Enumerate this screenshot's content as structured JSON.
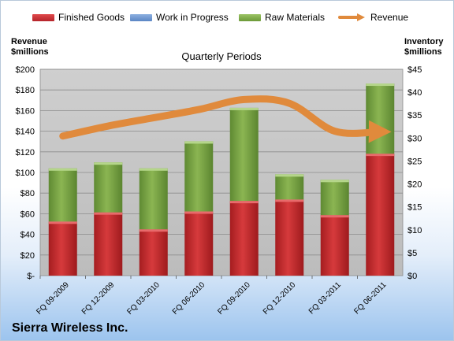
{
  "legend": {
    "finished_goods": "Finished Goods",
    "work_in_progress": "Work in Progress",
    "raw_materials": "Raw Materials",
    "revenue": "Revenue"
  },
  "axis": {
    "left_title": "Revenue\n$millions",
    "right_title": "Inventory\n$millions"
  },
  "company": "Sierra Wireless Inc.",
  "colors": {
    "finished_goods": "#c0282b",
    "work_in_progress": "#5b86c4",
    "raw_materials": "#78a243",
    "revenue": "#e08a3c",
    "plot_bg": "#c0c0c0"
  },
  "chart_data": {
    "type": "bar",
    "title": "Quarterly Periods",
    "stacked": true,
    "categories": [
      "FQ 09-2009",
      "FQ 12-2009",
      "FQ 03-2010",
      "FQ 06-2010",
      "FQ 09-2010",
      "FQ 12-2010",
      "FQ 03-2011",
      "FQ 06-2011"
    ],
    "series": [
      {
        "name": "Finished Goods",
        "axis": "right",
        "values": [
          11.8,
          13.8,
          10.1,
          14.0,
          16.3,
          16.6,
          13.2,
          26.6
        ]
      },
      {
        "name": "Work in Progress",
        "axis": "right",
        "values": [
          0,
          0,
          0,
          0,
          0,
          0,
          0,
          0
        ]
      },
      {
        "name": "Raw Materials",
        "axis": "right",
        "values": [
          11.6,
          10.9,
          13.3,
          15.3,
          20.3,
          5.5,
          7.7,
          15.3
        ]
      },
      {
        "name": "Revenue",
        "axis": "left",
        "type": "line",
        "values": [
          135.3,
          145,
          153,
          161,
          170.7,
          167,
          140,
          139.5
        ]
      }
    ],
    "y_left": {
      "ylim": [
        0,
        200
      ],
      "ticks": [
        "$-",
        "$20",
        "$40",
        "$60",
        "$80",
        "$100",
        "$120",
        "$140",
        "$160",
        "$180",
        "$200"
      ]
    },
    "y_right": {
      "ylim": [
        0,
        45
      ],
      "ticks": [
        "$0",
        "$5",
        "$10",
        "$15",
        "$20",
        "$25",
        "$30",
        "$35",
        "$40",
        "$45"
      ]
    },
    "grid": true,
    "legend_position": "top"
  }
}
